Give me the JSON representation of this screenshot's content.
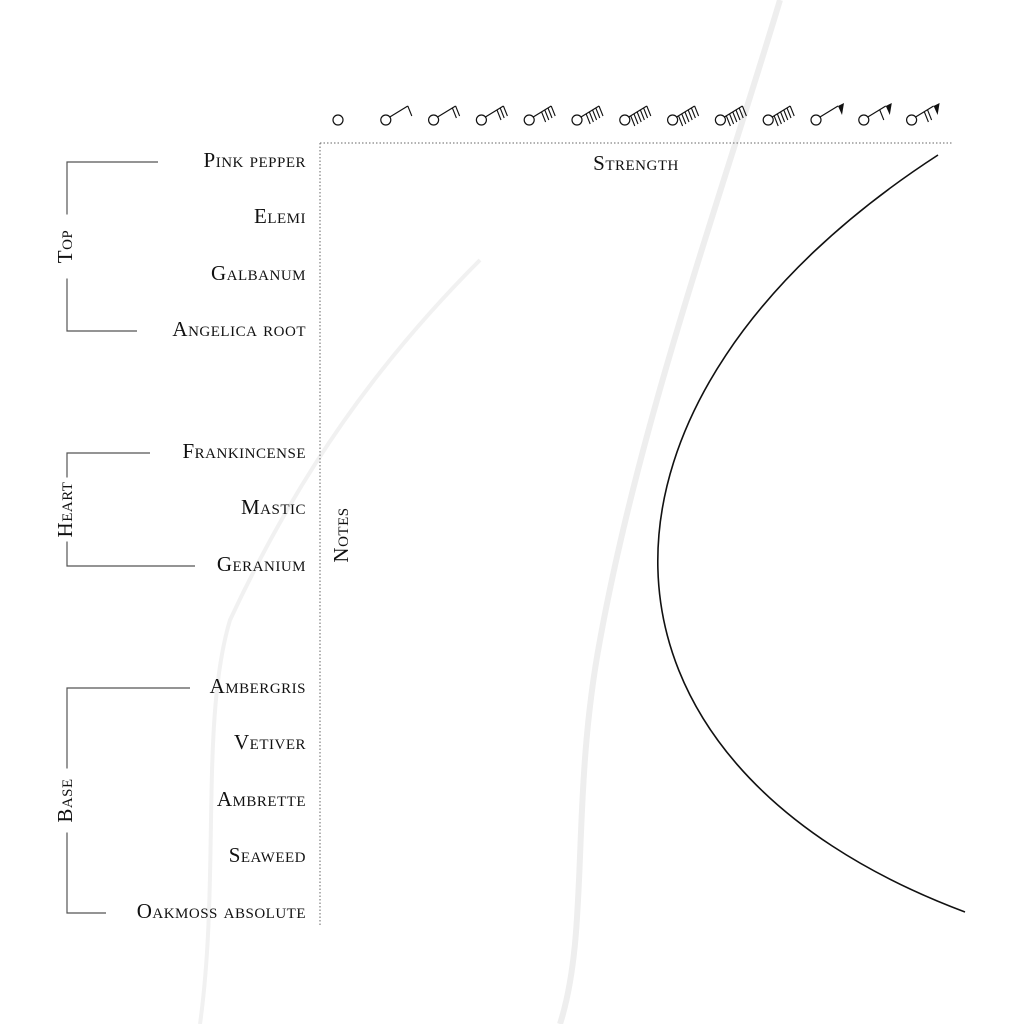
{
  "axes": {
    "x_label": "Strength",
    "y_label": "Notes"
  },
  "groups": [
    {
      "label": "Top",
      "notes": [
        "Pink pepper",
        "Elemi",
        "Galbanum",
        "Angelica root"
      ]
    },
    {
      "label": "Heart",
      "notes": [
        "Frankincense",
        "Mastic",
        "Geranium"
      ]
    },
    {
      "label": "Base",
      "notes": [
        "Ambergris",
        "Vetiver",
        "Ambrette",
        "Seaweed",
        "Oakmoss absolute"
      ]
    }
  ]
}
